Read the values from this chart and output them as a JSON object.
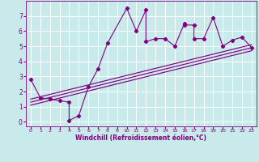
{
  "xlabel": "Windchill (Refroidissement éolien,°C)",
  "bg_color": "#c8eaea",
  "line_color": "#800080",
  "grid_color": "#ffffff",
  "scatter_x": [
    0,
    1,
    2,
    3,
    4,
    4,
    5,
    6,
    7,
    8,
    10,
    11,
    12,
    12,
    13,
    14,
    15,
    16,
    16,
    17,
    17,
    18,
    19,
    20,
    21,
    22,
    23
  ],
  "scatter_y": [
    2.8,
    1.6,
    1.5,
    1.4,
    1.3,
    0.1,
    0.4,
    2.3,
    3.5,
    5.2,
    7.5,
    6.0,
    7.4,
    5.3,
    5.5,
    5.5,
    5.0,
    6.5,
    6.4,
    6.4,
    5.5,
    5.5,
    6.9,
    5.0,
    5.4,
    5.6,
    4.9
  ],
  "reg_lines": [
    [
      [
        0,
        23
      ],
      [
        1.5,
        5.1
      ]
    ],
    [
      [
        0,
        23
      ],
      [
        1.1,
        4.7
      ]
    ],
    [
      [
        0,
        23
      ],
      [
        1.3,
        4.9
      ]
    ]
  ],
  "xlim": [
    -0.5,
    23.5
  ],
  "ylim": [
    -0.3,
    8.0
  ],
  "xticks": [
    0,
    1,
    2,
    3,
    4,
    5,
    6,
    7,
    8,
    9,
    10,
    11,
    12,
    13,
    14,
    15,
    16,
    17,
    18,
    19,
    20,
    21,
    22,
    23
  ],
  "yticks": [
    0,
    1,
    2,
    3,
    4,
    5,
    6,
    7
  ]
}
